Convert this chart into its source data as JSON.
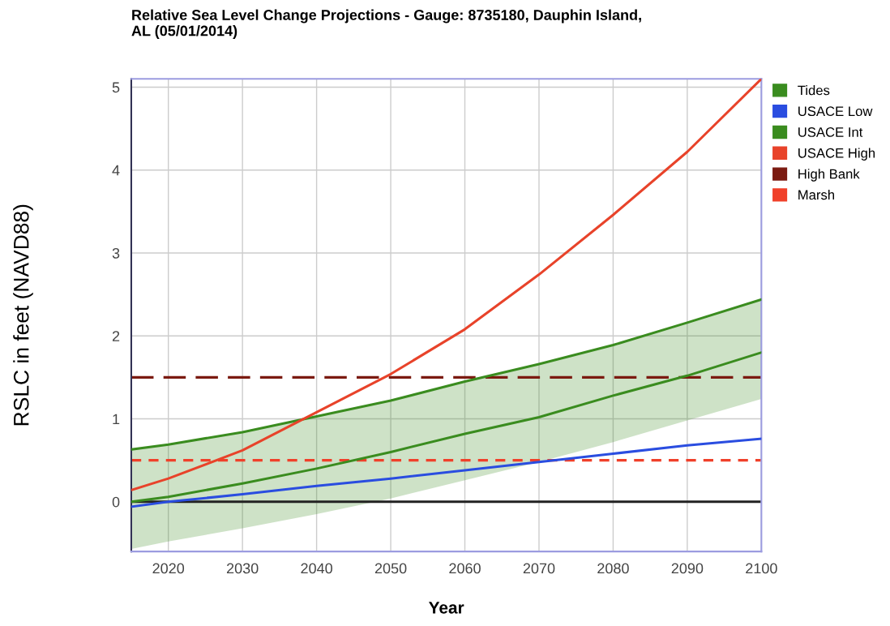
{
  "chart_data": {
    "type": "line",
    "title": "Relative Sea Level Change Projections - Gauge: 8735180, Dauphin Island,\nAL (05/01/2014)",
    "xlabel": "Year",
    "ylabel": "RSLC in feet (NAVD88)",
    "x": [
      2015,
      2020,
      2030,
      2040,
      2050,
      2060,
      2070,
      2080,
      2090,
      2100
    ],
    "series": [
      {
        "name": "Tides",
        "color": "#3a8c1f",
        "values": [
          0.63,
          0.69,
          0.84,
          1.03,
          1.22,
          1.45,
          1.66,
          1.89,
          2.16,
          2.44
        ],
        "lower": [
          -0.57,
          -0.48,
          -0.32,
          -0.15,
          0.04,
          0.26,
          0.48,
          0.72,
          0.98,
          1.24
        ],
        "upper": [
          0.63,
          0.69,
          0.84,
          1.03,
          1.22,
          1.45,
          1.66,
          1.89,
          2.16,
          2.44
        ]
      },
      {
        "name": "USACE Low",
        "color": "#2a4de0",
        "values": [
          -0.06,
          0.0,
          0.09,
          0.19,
          0.28,
          0.38,
          0.48,
          0.58,
          0.68,
          0.76
        ]
      },
      {
        "name": "USACE Int",
        "color": "#3a8c1f",
        "values": [
          0.0,
          0.06,
          0.22,
          0.4,
          0.6,
          0.82,
          1.02,
          1.28,
          1.52,
          1.8
        ]
      },
      {
        "name": "USACE High",
        "color": "#e8432a",
        "values": [
          0.14,
          0.28,
          0.62,
          1.08,
          1.54,
          2.08,
          2.74,
          3.46,
          4.22,
          5.1
        ]
      }
    ],
    "ref_lines": [
      {
        "axis": "y",
        "value": 1.5,
        "label": "High Bank",
        "color": "#7b1a10",
        "line_style": "dashed"
      },
      {
        "axis": "y",
        "value": 0.5,
        "label": "Marsh",
        "color": "#f0402a",
        "line_style": "dotted"
      },
      {
        "axis": "y",
        "value": 0,
        "label": null,
        "color": "#222222",
        "line_style": "solid"
      }
    ],
    "xlim": [
      2015,
      2100
    ],
    "xticks": [
      2020,
      2030,
      2040,
      2050,
      2060,
      2070,
      2080,
      2090,
      2100
    ],
    "ylim": [
      -0.6,
      5.1
    ],
    "yticks": [
      0,
      1,
      2,
      3,
      4,
      5
    ],
    "grid": true,
    "legend": "top right",
    "marker": "none",
    "line_style": "solid"
  }
}
